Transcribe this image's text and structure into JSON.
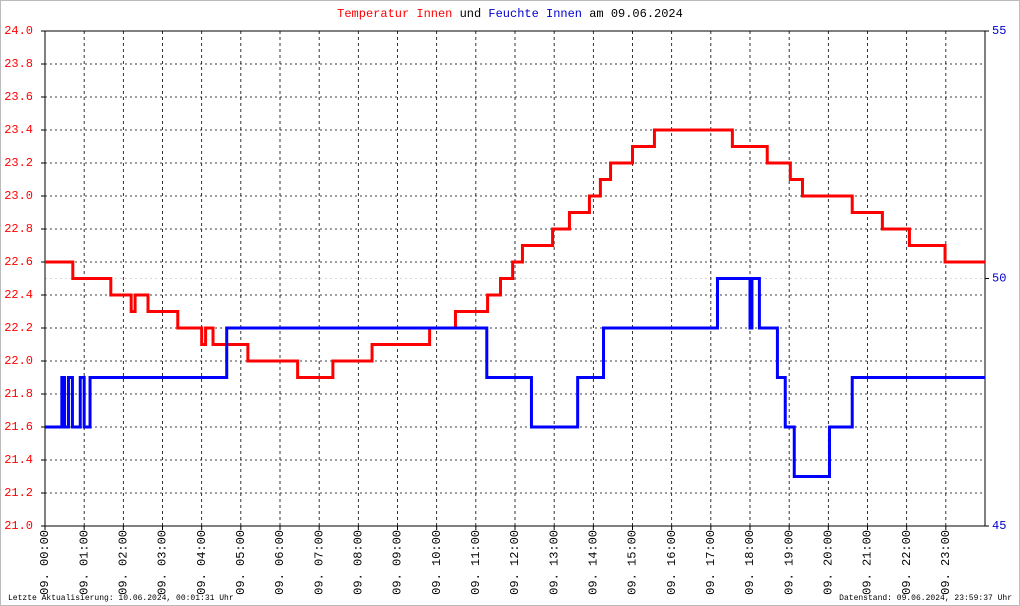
{
  "chart_data": {
    "type": "step-line",
    "title": {
      "temp": "Temperatur Innen",
      "und": "und",
      "feuchte": "Feuchte Innen",
      "date": "am 09.06.2024"
    },
    "footer_left": "Letzte Aktualisierung: 10.06.2024, 00:01:31 Uhr",
    "footer_right": "Datenstand: 09.06.2024, 23:59:37 Uhr",
    "xlim": [
      0,
      24
    ],
    "xticks": [
      {
        "value": 0,
        "label": "09. 00:00"
      },
      {
        "value": 1,
        "label": "09. 01:00"
      },
      {
        "value": 2,
        "label": "09. 02:00"
      },
      {
        "value": 3,
        "label": "09. 03:00"
      },
      {
        "value": 4,
        "label": "09. 04:00"
      },
      {
        "value": 5,
        "label": "09. 05:00"
      },
      {
        "value": 6,
        "label": "09. 06:00"
      },
      {
        "value": 7,
        "label": "09. 07:00"
      },
      {
        "value": 8,
        "label": "09. 08:00"
      },
      {
        "value": 9,
        "label": "09. 09:00"
      },
      {
        "value": 10,
        "label": "09. 10:00"
      },
      {
        "value": 11,
        "label": "09. 11:00"
      },
      {
        "value": 12,
        "label": "09. 12:00"
      },
      {
        "value": 13,
        "label": "09. 13:00"
      },
      {
        "value": 14,
        "label": "09. 14:00"
      },
      {
        "value": 15,
        "label": "09. 15:00"
      },
      {
        "value": 16,
        "label": "09. 16:00"
      },
      {
        "value": 17,
        "label": "09. 17:00"
      },
      {
        "value": 18,
        "label": "09. 18:00"
      },
      {
        "value": 19,
        "label": "09. 19:00"
      },
      {
        "value": 20,
        "label": "09. 20:00"
      },
      {
        "value": 21,
        "label": "09. 21:00"
      },
      {
        "value": 22,
        "label": "09. 22:00"
      },
      {
        "value": 23,
        "label": "09. 23:00"
      }
    ],
    "ylim": [
      21,
      24
    ],
    "yticks": [
      {
        "value": 21,
        "label": "21.0"
      },
      21.2,
      21.4,
      21.6,
      21.8,
      {
        "value": 22,
        "label": "22.0"
      },
      22.2,
      22.4,
      22.6,
      22.8,
      {
        "value": 23,
        "label": "23.0"
      },
      23.2,
      23.4,
      23.6,
      23.8,
      {
        "value": 24,
        "label": "24.0"
      }
    ],
    "y2lim": [
      45,
      55
    ],
    "y2ticks": [
      45,
      50,
      55
    ],
    "ytick_color": "#ff0000",
    "y2tick_color": "#0000cc",
    "grid": true,
    "series": [
      {
        "color": "#ff0000",
        "x": [
          0,
          0.71,
          1.68,
          2.2,
          2.3,
          2.63,
          3.39,
          4.0,
          4.1,
          4.29,
          5.18,
          6.45,
          7.35,
          8.35,
          9.82,
          10.48,
          11.3,
          11.63,
          11.94,
          12.19,
          12.96,
          13.39,
          13.9,
          14.18,
          14.44,
          15.0,
          15.56,
          17.55,
          18.44,
          19.03,
          19.34,
          20.61,
          21.38,
          22.07,
          22.98,
          24
        ],
        "values": [
          22.6,
          22.5,
          22.4,
          22.3,
          22.4,
          22.3,
          22.2,
          22.1,
          22.2,
          22.1,
          22.0,
          21.9,
          22.0,
          22.1,
          22.2,
          22.3,
          22.4,
          22.5,
          22.6,
          22.7,
          22.8,
          22.9,
          23.0,
          23.1,
          23.2,
          23.3,
          23.4,
          23.3,
          23.2,
          23.1,
          23.0,
          22.9,
          22.8,
          22.7,
          22.6,
          22.6
        ]
      },
      {
        "color": "#0000ff",
        "axis": "y2",
        "x": [
          0,
          0.43,
          0.5,
          0.6,
          0.7,
          0.9,
          1.0,
          1.15,
          4.64,
          11.28,
          12.42,
          13.6,
          14.26,
          17.17,
          18.0,
          18.05,
          18.24,
          18.7,
          18.9,
          19.13,
          20.03,
          20.61,
          24
        ],
        "values": [
          47,
          48,
          47,
          48,
          47,
          48,
          47,
          48,
          49,
          48,
          47,
          48,
          49,
          50,
          49,
          50,
          49,
          48,
          47,
          46,
          47,
          48,
          48
        ]
      }
    ]
  }
}
